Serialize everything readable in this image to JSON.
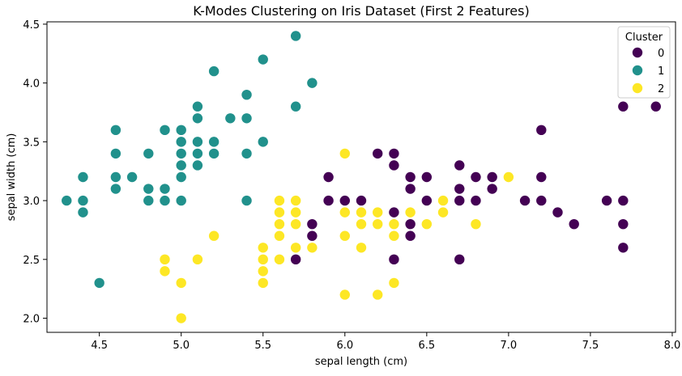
{
  "chart_data": {
    "type": "scatter",
    "title": "K-Modes Clustering on Iris Dataset (First 2 Features)",
    "xlabel": "sepal length (cm)",
    "ylabel": "sepal width (cm)",
    "xlim": [
      4.18,
      8.02
    ],
    "ylim": [
      1.88,
      4.52
    ],
    "xticks": [
      4.5,
      5.0,
      5.5,
      6.0,
      6.5,
      7.0,
      7.5,
      8.0
    ],
    "xtick_labels": [
      "4.5",
      "5.0",
      "5.5",
      "6.0",
      "6.5",
      "7.0",
      "7.5",
      "8.0"
    ],
    "yticks": [
      2.0,
      2.5,
      3.0,
      3.5,
      4.0,
      4.5
    ],
    "ytick_labels": [
      "2.0",
      "2.5",
      "3.0",
      "3.5",
      "4.0",
      "4.5"
    ],
    "grid": false,
    "legend": {
      "title": "Cluster",
      "placement": "top-right"
    },
    "series": [
      {
        "name": "0",
        "color": "#440154",
        "points": [
          [
            5.7,
            2.5
          ],
          [
            5.8,
            2.7
          ],
          [
            5.8,
            2.8
          ],
          [
            5.9,
            3.0
          ],
          [
            5.9,
            3.2
          ],
          [
            6.0,
            3.0
          ],
          [
            6.1,
            3.0
          ],
          [
            6.2,
            3.4
          ],
          [
            6.3,
            2.5
          ],
          [
            6.3,
            2.9
          ],
          [
            6.3,
            3.3
          ],
          [
            6.3,
            3.4
          ],
          [
            6.4,
            2.7
          ],
          [
            6.4,
            2.8
          ],
          [
            6.4,
            3.1
          ],
          [
            6.4,
            3.2
          ],
          [
            6.5,
            3.0
          ],
          [
            6.5,
            3.2
          ],
          [
            6.7,
            2.5
          ],
          [
            6.7,
            3.0
          ],
          [
            6.7,
            3.1
          ],
          [
            6.7,
            3.3
          ],
          [
            6.8,
            3.0
          ],
          [
            6.8,
            3.2
          ],
          [
            6.9,
            3.1
          ],
          [
            6.9,
            3.2
          ],
          [
            7.1,
            3.0
          ],
          [
            7.2,
            3.0
          ],
          [
            7.2,
            3.2
          ],
          [
            7.2,
            3.6
          ],
          [
            7.3,
            2.9
          ],
          [
            7.4,
            2.8
          ],
          [
            7.6,
            3.0
          ],
          [
            7.7,
            2.6
          ],
          [
            7.7,
            2.8
          ],
          [
            7.7,
            3.0
          ],
          [
            7.7,
            3.8
          ],
          [
            7.9,
            3.8
          ]
        ]
      },
      {
        "name": "1",
        "color": "#21918c",
        "points": [
          [
            4.3,
            3.0
          ],
          [
            4.4,
            2.9
          ],
          [
            4.4,
            3.0
          ],
          [
            4.4,
            3.2
          ],
          [
            4.5,
            2.3
          ],
          [
            4.6,
            3.1
          ],
          [
            4.6,
            3.2
          ],
          [
            4.6,
            3.4
          ],
          [
            4.6,
            3.6
          ],
          [
            4.7,
            3.2
          ],
          [
            4.8,
            3.0
          ],
          [
            4.8,
            3.1
          ],
          [
            4.8,
            3.4
          ],
          [
            4.9,
            3.0
          ],
          [
            4.9,
            3.1
          ],
          [
            4.9,
            3.6
          ],
          [
            5.0,
            3.0
          ],
          [
            5.0,
            3.2
          ],
          [
            5.0,
            3.3
          ],
          [
            5.0,
            3.4
          ],
          [
            5.0,
            3.5
          ],
          [
            5.0,
            3.6
          ],
          [
            5.1,
            3.3
          ],
          [
            5.1,
            3.4
          ],
          [
            5.1,
            3.5
          ],
          [
            5.1,
            3.7
          ],
          [
            5.1,
            3.8
          ],
          [
            5.2,
            3.4
          ],
          [
            5.2,
            3.5
          ],
          [
            5.2,
            4.1
          ],
          [
            5.3,
            3.7
          ],
          [
            5.4,
            3.0
          ],
          [
            5.4,
            3.4
          ],
          [
            5.4,
            3.7
          ],
          [
            5.4,
            3.9
          ],
          [
            5.5,
            3.5
          ],
          [
            5.5,
            4.2
          ],
          [
            5.7,
            3.8
          ],
          [
            5.7,
            4.4
          ],
          [
            5.8,
            4.0
          ]
        ]
      },
      {
        "name": "2",
        "color": "#fde725",
        "points": [
          [
            4.9,
            2.4
          ],
          [
            4.9,
            2.5
          ],
          [
            5.0,
            2.0
          ],
          [
            5.0,
            2.3
          ],
          [
            5.1,
            2.5
          ],
          [
            5.2,
            2.7
          ],
          [
            5.5,
            2.3
          ],
          [
            5.5,
            2.4
          ],
          [
            5.5,
            2.5
          ],
          [
            5.5,
            2.6
          ],
          [
            5.6,
            2.5
          ],
          [
            5.6,
            2.7
          ],
          [
            5.6,
            2.8
          ],
          [
            5.6,
            2.9
          ],
          [
            5.6,
            3.0
          ],
          [
            5.7,
            2.6
          ],
          [
            5.7,
            2.8
          ],
          [
            5.7,
            2.9
          ],
          [
            5.7,
            3.0
          ],
          [
            5.8,
            2.6
          ],
          [
            6.0,
            2.2
          ],
          [
            6.0,
            2.7
          ],
          [
            6.0,
            2.9
          ],
          [
            6.0,
            3.4
          ],
          [
            6.1,
            2.6
          ],
          [
            6.1,
            2.8
          ],
          [
            6.1,
            2.9
          ],
          [
            6.2,
            2.2
          ],
          [
            6.2,
            2.8
          ],
          [
            6.2,
            2.9
          ],
          [
            6.3,
            2.3
          ],
          [
            6.3,
            2.7
          ],
          [
            6.3,
            2.8
          ],
          [
            6.4,
            2.9
          ],
          [
            6.5,
            2.8
          ],
          [
            6.6,
            2.9
          ],
          [
            6.6,
            3.0
          ],
          [
            6.8,
            2.8
          ],
          [
            7.0,
            3.2
          ]
        ]
      }
    ]
  }
}
